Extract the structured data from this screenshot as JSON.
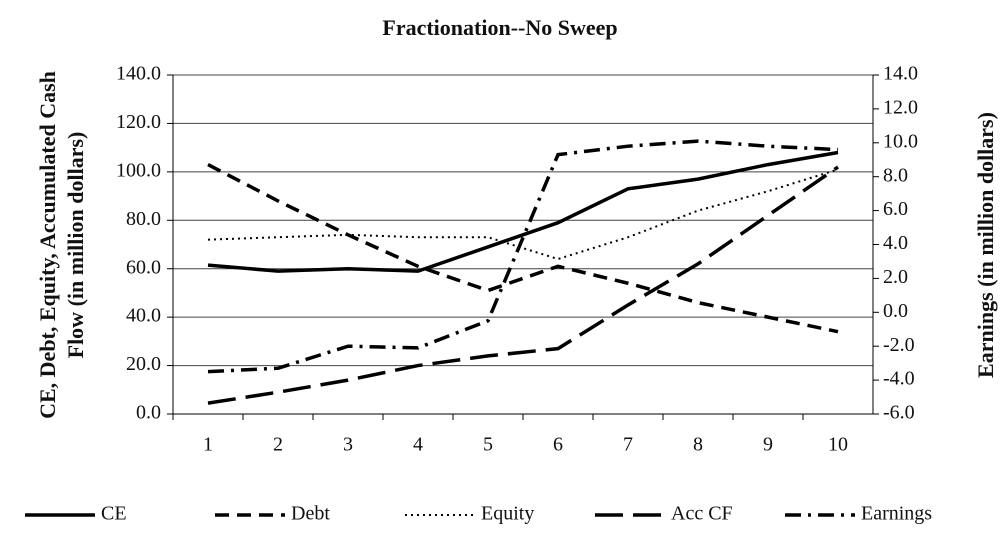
{
  "chart_data": {
    "type": "line",
    "title": "Fractionation--No Sweep",
    "ylabel": [
      "CE, Debt, Equity, Accumulated Cash",
      "Flow (in million dollars)"
    ],
    "y2label": "Earnings (in million dollars)",
    "categories": [
      "1",
      "2",
      "3",
      "4",
      "5",
      "6",
      "7",
      "8",
      "9",
      "10"
    ],
    "series": [
      {
        "name": "CE",
        "color": "#000000",
        "dash": "solid",
        "values": [
          61.5,
          59,
          60,
          59,
          69,
          79,
          93,
          97,
          103,
          108
        ]
      },
      {
        "name": "Debt",
        "color": "#000000",
        "dash": "dash",
        "values": [
          103,
          88,
          74,
          61,
          51,
          61,
          54,
          46,
          40,
          34
        ]
      },
      {
        "name": "Equity",
        "color": "#000000",
        "dash": "dot",
        "values": [
          72,
          73,
          74,
          73,
          73,
          64,
          73,
          84,
          92,
          101
        ]
      },
      {
        "name": "Acc CF",
        "color": "#000000",
        "dash": "longdash",
        "values": [
          4.5,
          9,
          14,
          20,
          24,
          27,
          45,
          62,
          82,
          102
        ]
      },
      {
        "name": "Earnings",
        "color": "#000000",
        "dash": "dashdot",
        "axis": "y2",
        "values": [
          -3.5,
          -3.3,
          -2.0,
          -2.1,
          -0.5,
          9.3,
          9.8,
          10.1,
          9.8,
          9.6
        ]
      }
    ],
    "ylim": [
      0,
      140
    ],
    "yticks": [
      {
        "value": 0,
        "label": "0.0"
      },
      {
        "value": 20,
        "label": "20.0"
      },
      {
        "value": 40,
        "label": "40.0"
      },
      {
        "value": 60,
        "label": "60.0"
      },
      {
        "value": 80,
        "label": "80.0"
      },
      {
        "value": 100,
        "label": "100.0"
      },
      {
        "value": 120,
        "label": "120.0"
      },
      {
        "value": 140,
        "label": "140.0"
      }
    ],
    "y2lim": [
      -6,
      14
    ],
    "y2ticks": [
      {
        "value": -6,
        "label": "-6.0"
      },
      {
        "value": -4,
        "label": "-4.0"
      },
      {
        "value": -2,
        "label": "-2.0"
      },
      {
        "value": 0,
        "label": "0.0"
      },
      {
        "value": 2,
        "label": "2.0"
      },
      {
        "value": 4,
        "label": "4.0"
      },
      {
        "value": 6,
        "label": "6.0"
      },
      {
        "value": 8,
        "label": "8.0"
      },
      {
        "value": 10,
        "label": "10.0"
      },
      {
        "value": 12,
        "label": "12.0"
      },
      {
        "value": 14,
        "label": "14.0"
      }
    ],
    "grid": true,
    "legend": "bottom"
  }
}
